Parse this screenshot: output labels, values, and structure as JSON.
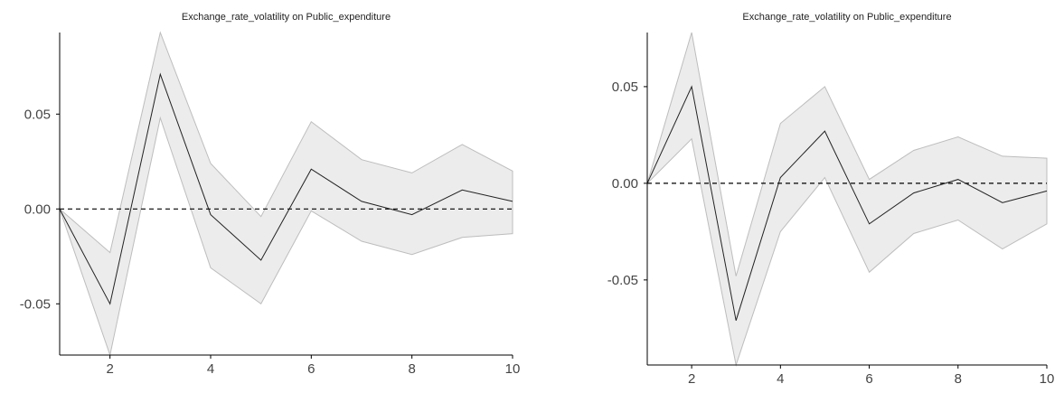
{
  "chart_data": [
    {
      "type": "line",
      "title": "Exchange_rate_volatility on Public_expenditure",
      "xlabel": "",
      "ylabel": "",
      "x": [
        1,
        2,
        3,
        4,
        5,
        6,
        7,
        8,
        9,
        10
      ],
      "x_ticks": [
        "2",
        "4",
        "6",
        "8",
        "10"
      ],
      "y_ticks": [
        "0.05",
        "0.00",
        "-0.05"
      ],
      "xlim": [
        1,
        10
      ],
      "ylim": [
        -0.077,
        0.093
      ],
      "series": [
        {
          "role": "response",
          "values": [
            0.0,
            -0.05,
            0.071,
            -0.003,
            -0.027,
            0.021,
            0.004,
            -0.003,
            0.01,
            0.004
          ]
        },
        {
          "role": "upper",
          "values": [
            0.0,
            -0.023,
            0.093,
            0.024,
            -0.004,
            0.046,
            0.026,
            0.019,
            0.034,
            0.02
          ]
        },
        {
          "role": "lower",
          "values": [
            0.0,
            -0.077,
            0.048,
            -0.031,
            -0.05,
            -0.001,
            -0.017,
            -0.024,
            -0.015,
            -0.013
          ]
        }
      ],
      "reference_line": 0.0,
      "colors": {
        "band": "#ececec",
        "band_edge": "#bdbdbd",
        "line": "#222222"
      }
    },
    {
      "type": "line",
      "title": "Exchange_rate_volatility on Public_expenditure",
      "xlabel": "",
      "ylabel": "",
      "x": [
        1,
        2,
        3,
        4,
        5,
        6,
        7,
        8,
        9,
        10
      ],
      "x_ticks": [
        "2",
        "4",
        "6",
        "8",
        "10"
      ],
      "y_ticks": [
        "0.05",
        "0.00",
        "-0.05"
      ],
      "xlim": [
        1,
        10
      ],
      "ylim": [
        -0.094,
        0.078
      ],
      "series": [
        {
          "role": "response",
          "values": [
            0.0,
            0.05,
            -0.071,
            0.003,
            0.027,
            -0.021,
            -0.005,
            0.002,
            -0.01,
            -0.004
          ]
        },
        {
          "role": "upper",
          "values": [
            0.0,
            0.078,
            -0.048,
            0.031,
            0.05,
            0.002,
            0.017,
            0.024,
            0.014,
            0.013
          ]
        },
        {
          "role": "lower",
          "values": [
            0.0,
            0.023,
            -0.094,
            -0.025,
            0.003,
            -0.046,
            -0.026,
            -0.019,
            -0.034,
            -0.021
          ]
        }
      ],
      "reference_line": 0.0,
      "colors": {
        "band": "#ececec",
        "band_edge": "#bdbdbd",
        "line": "#222222"
      }
    }
  ]
}
